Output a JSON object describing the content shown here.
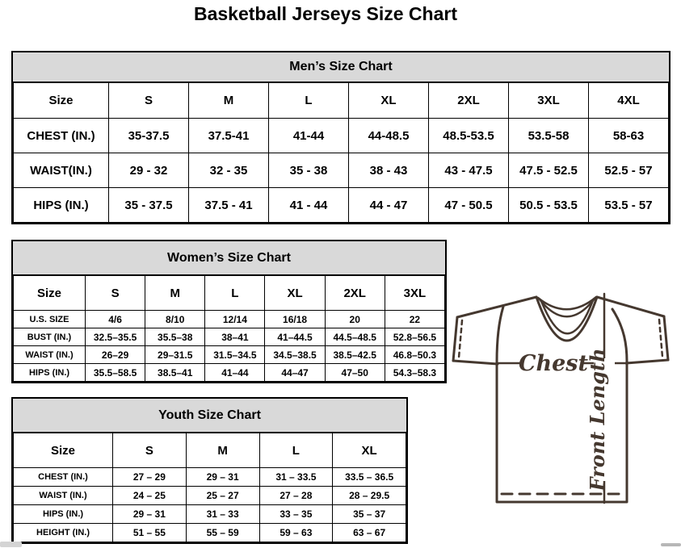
{
  "page": {
    "title": "Basketball Jerseys Size Chart"
  },
  "tables": {
    "mens": {
      "title": "Men’s Size Chart",
      "columns": [
        "Size",
        "S",
        "M",
        "L",
        "XL",
        "2XL",
        "3XL",
        "4XL"
      ],
      "rows": [
        [
          "CHEST (IN.)",
          "35-37.5",
          "37.5-41",
          "41-44",
          "44-48.5",
          "48.5-53.5",
          "53.5-58",
          "58-63"
        ],
        [
          "WAIST(IN.)",
          "29 - 32",
          "32 - 35",
          "35 - 38",
          "38 - 43",
          "43 - 47.5",
          "47.5 - 52.5",
          "52.5 - 57"
        ],
        [
          "HIPS (IN.)",
          "35 - 37.5",
          "37.5 - 41",
          "41 - 44",
          "44 - 47",
          "47 - 50.5",
          "50.5 - 53.5",
          "53.5 - 57"
        ]
      ]
    },
    "womens": {
      "title": "Women’s Size Chart",
      "columns": [
        "Size",
        "S",
        "M",
        "L",
        "XL",
        "2XL",
        "3XL"
      ],
      "rows": [
        [
          "U.S. SIZE",
          "4/6",
          "8/10",
          "12/14",
          "16/18",
          "20",
          "22"
        ],
        [
          "BUST (IN.)",
          "32.5–35.5",
          "35.5–38",
          "38–41",
          "41–44.5",
          "44.5–48.5",
          "52.8–56.5"
        ],
        [
          "WAIST (IN.)",
          "26–29",
          "29–31.5",
          "31.5–34.5",
          "34.5–38.5",
          "38.5–42.5",
          "46.8–50.3"
        ],
        [
          "HIPS (IN.)",
          "35.5–58.5",
          "38.5–41",
          "41–44",
          "44–47",
          "47–50",
          "54.3–58.3"
        ]
      ]
    },
    "youth": {
      "title": "Youth Size Chart",
      "columns": [
        "Size",
        "S",
        "M",
        "L",
        "XL"
      ],
      "rows": [
        [
          "CHEST (IN.)",
          "27 – 29",
          "29 – 31",
          "31 – 33.5",
          "33.5 – 36.5"
        ],
        [
          "WAIST (IN.)",
          "24 – 25",
          "25 – 27",
          "27 – 28",
          "28 – 29.5"
        ],
        [
          "HIPS (IN.)",
          "29 – 31",
          "31 – 33",
          "33 – 35",
          "35 – 37"
        ],
        [
          "HEIGHT (IN.)",
          "51 – 55",
          "55 – 59",
          "59 – 63",
          "63 – 67"
        ]
      ]
    }
  },
  "diagram": {
    "chest_label": "Chest",
    "front_length_label": "Front Length",
    "line_color": "#45382f"
  },
  "colors": {
    "table_header_bg": "#d9d9d9",
    "table_border": "#000000"
  }
}
